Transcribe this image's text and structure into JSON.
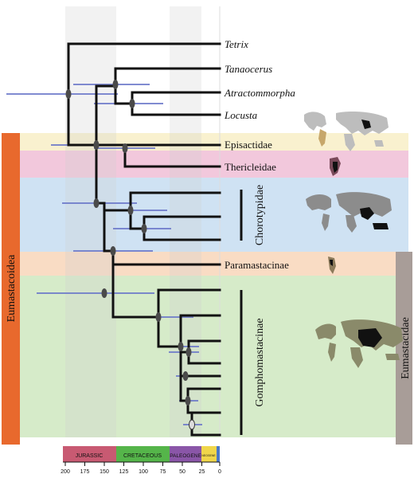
{
  "taxa": {
    "tetrix": "Tetrix",
    "tanaocerus": "Tanaocerus",
    "atractomorpha": "Atractommorpha",
    "locusta": "Locusta",
    "episactidae": "Episactidae",
    "thericleidae": "Thericleidae",
    "paramastacinae": "Paramastacinae"
  },
  "clades": {
    "chorotypidae": "Chorotypidae",
    "gomphomastacinae": "Gomphomastacinae",
    "eumastacoidea": "Eumastacoidea",
    "eumastacidae": "Eumastacidae"
  },
  "timescale": {
    "periods": [
      {
        "label": "JURASSIC",
        "color": "#c85a72"
      },
      {
        "label": "CRETACEOUS",
        "color": "#55b54a"
      },
      {
        "label": "PALEOGENE",
        "color": "#8a56a8"
      },
      {
        "label": "NEOGENE",
        "color": "#f0d64a"
      }
    ],
    "ticks": [
      "200",
      "175",
      "150",
      "125",
      "100",
      "75",
      "50",
      "25",
      "0"
    ]
  },
  "colors": {
    "band_episactidae": "#f9f1cf",
    "band_thericleidae": "#f2c8dc",
    "band_chorotypidae": "#cfe2f3",
    "band_paramastacinae": "#f9dcc4",
    "band_gomphomastacinae": "#d6ebc9",
    "eumastacoidea_bar": "#e8692d",
    "eumastacidae_bar": "#a89d98",
    "error_bar": "#6b77c9",
    "node": "#4a4a4a"
  }
}
